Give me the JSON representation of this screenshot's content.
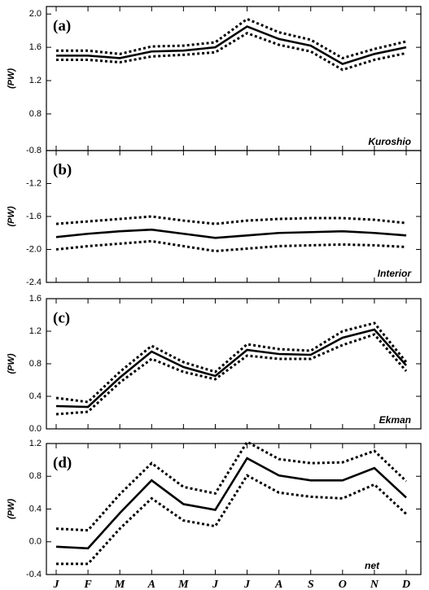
{
  "chart_data": [
    {
      "type": "line",
      "panel_label": "(a)",
      "y_label": "(PW)",
      "annotation": "Kuroshio",
      "ylim": [
        0.36,
        2.09
      ],
      "yticks": [
        {
          "value": 2,
          "label": "2.0"
        },
        1.6,
        1.2,
        0.8
      ],
      "series": [
        {
          "color": "#000000",
          "dash": "solid",
          "values": [
            1.5,
            1.5,
            1.47,
            1.55,
            1.56,
            1.6,
            1.85,
            1.7,
            1.62,
            1.4,
            1.52,
            1.6
          ]
        },
        {
          "color": "#000000",
          "dash": "dotted",
          "values": [
            1.56,
            1.56,
            1.52,
            1.61,
            1.62,
            1.66,
            1.94,
            1.78,
            1.69,
            1.47,
            1.58,
            1.67
          ]
        },
        {
          "color": "#000000",
          "dash": "dotted",
          "values": [
            1.45,
            1.45,
            1.42,
            1.49,
            1.51,
            1.54,
            1.77,
            1.63,
            1.55,
            1.33,
            1.45,
            1.53
          ]
        }
      ]
    },
    {
      "type": "line",
      "panel_label": "(b)",
      "y_label": "(PW)",
      "annotation": "Interior",
      "ylim": [
        -2.4,
        -0.8
      ],
      "yticks": [
        -0.8,
        -1.2,
        -1.6,
        {
          "value": -2,
          "label": "-2.0"
        },
        -2.4
      ],
      "series": [
        {
          "color": "#000000",
          "dash": "solid",
          "values": [
            -1.85,
            -1.81,
            -1.78,
            -1.76,
            -1.81,
            -1.86,
            -1.83,
            -1.8,
            -1.79,
            -1.78,
            -1.8,
            -1.83
          ]
        },
        {
          "color": "#000000",
          "dash": "dotted",
          "values": [
            -1.69,
            -1.66,
            -1.63,
            -1.6,
            -1.65,
            -1.69,
            -1.65,
            -1.63,
            -1.62,
            -1.62,
            -1.64,
            -1.68
          ]
        },
        {
          "color": "#000000",
          "dash": "dotted",
          "values": [
            -2.0,
            -1.96,
            -1.93,
            -1.9,
            -1.96,
            -2.02,
            -1.99,
            -1.96,
            -1.95,
            -1.94,
            -1.95,
            -1.97
          ]
        }
      ]
    },
    {
      "type": "line",
      "panel_label": "(c)",
      "y_label": "(PW)",
      "annotation": "Ekman",
      "ylim": [
        0,
        1.6
      ],
      "yticks": [
        1.6,
        1.2,
        0.8,
        0.4,
        {
          "value": 0,
          "label": "0.0"
        }
      ],
      "series": [
        {
          "color": "#000000",
          "dash": "solid",
          "values": [
            0.28,
            0.27,
            0.63,
            0.95,
            0.76,
            0.65,
            0.97,
            0.92,
            0.91,
            1.12,
            1.22,
            0.78
          ]
        },
        {
          "color": "#000000",
          "dash": "dotted",
          "values": [
            0.38,
            0.33,
            0.7,
            1.02,
            0.82,
            0.7,
            1.04,
            0.98,
            0.96,
            1.2,
            1.3,
            0.82
          ]
        },
        {
          "color": "#000000",
          "dash": "dotted",
          "values": [
            0.18,
            0.21,
            0.57,
            0.86,
            0.7,
            0.61,
            0.9,
            0.86,
            0.86,
            1.03,
            1.16,
            0.71
          ]
        }
      ]
    },
    {
      "type": "line",
      "panel_label": "(d)",
      "y_label": "(PW)",
      "annotation": "net",
      "categories": [
        "J",
        "F",
        "M",
        "A",
        "M",
        "J",
        "J",
        "A",
        "S",
        "O",
        "N",
        "D"
      ],
      "ylim": [
        -0.4,
        1.2
      ],
      "yticks": [
        1.2,
        0.8,
        0.4,
        {
          "value": 0,
          "label": "0.0"
        },
        -0.4
      ],
      "series": [
        {
          "color": "#000000",
          "dash": "solid",
          "values": [
            -0.06,
            -0.08,
            0.35,
            0.75,
            0.46,
            0.39,
            1.02,
            0.81,
            0.75,
            0.75,
            0.9,
            0.54
          ]
        },
        {
          "color": "#000000",
          "dash": "dotted",
          "values": [
            0.16,
            0.14,
            0.58,
            0.96,
            0.67,
            0.59,
            1.22,
            1.01,
            0.96,
            0.97,
            1.11,
            0.74
          ]
        },
        {
          "color": "#000000",
          "dash": "dotted",
          "values": [
            -0.27,
            -0.27,
            0.16,
            0.53,
            0.26,
            0.19,
            0.81,
            0.6,
            0.55,
            0.53,
            0.7,
            0.34
          ]
        }
      ]
    }
  ]
}
